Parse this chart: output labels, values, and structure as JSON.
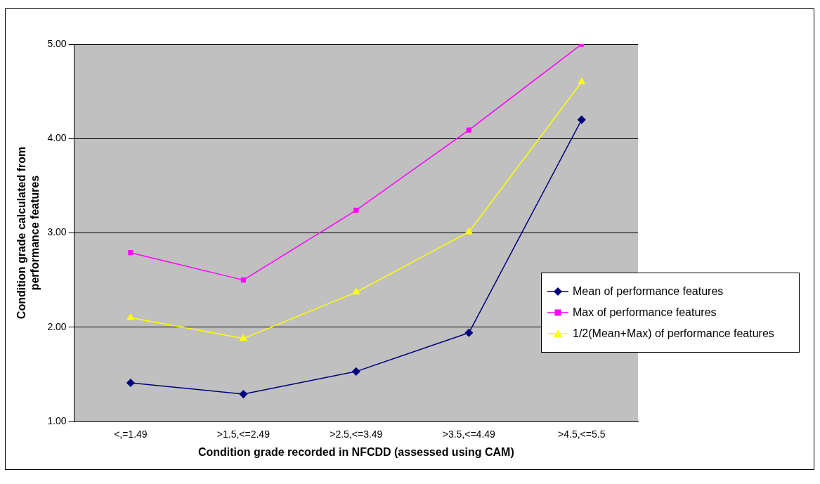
{
  "chart_data": {
    "type": "line",
    "xlabel": "Condition grade recorded in NFCDD (assessed using CAM)",
    "ylabel": "Condition grade calculated from performance features",
    "categories": [
      "<,=1.49",
      ">1.5,<=2.49",
      ">2.5,<=3.49",
      ">3.5,<=4.49",
      ">4.5,<=5.5"
    ],
    "series": [
      {
        "name": "Mean of performance features",
        "color": "#000080",
        "marker": "diamond",
        "values": [
          1.41,
          1.29,
          1.53,
          1.94,
          4.2
        ]
      },
      {
        "name": "Max of performance features",
        "color": "#ff00ff",
        "marker": "square",
        "values": [
          2.79,
          2.5,
          3.24,
          4.09,
          5.0
        ]
      },
      {
        "name": "1/2(Mean+Max) of performance features",
        "color": "#ffff00",
        "marker": "triangle",
        "values": [
          2.1,
          1.88,
          2.37,
          3.01,
          4.6
        ]
      }
    ],
    "ylim": [
      1,
      5
    ],
    "yticks": [
      {
        "value": 1,
        "label": "1.00"
      },
      {
        "value": 2,
        "label": "2.00"
      },
      {
        "value": 3,
        "label": "3.00"
      },
      {
        "value": 4,
        "label": "4.00"
      },
      {
        "value": 5,
        "label": "5.00"
      }
    ],
    "grid": "y",
    "legend": "right"
  }
}
